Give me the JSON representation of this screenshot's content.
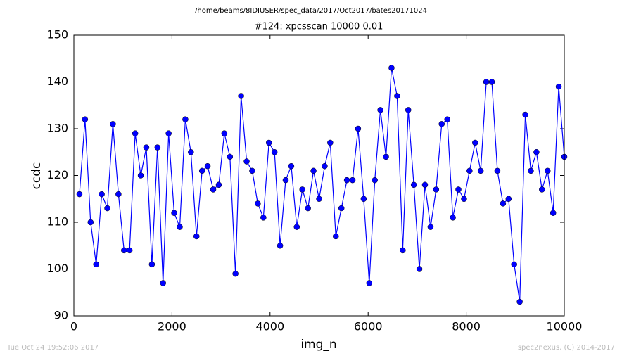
{
  "chart_data": {
    "type": "line",
    "suptitle": "/home/beams/8IDIUSER/spec_data/2017/Oct2017/bates20171024",
    "title": "#124: xpcsscan 10000 0.01",
    "xlabel": "img_n",
    "ylabel": "ccdc",
    "footer_left": "Tue Oct 24 19:52:06 2017",
    "footer_right": "spec2nexus, (C) 2014-2017",
    "x": [
      114,
      227,
      341,
      455,
      568,
      682,
      795,
      909,
      1023,
      1136,
      1250,
      1364,
      1477,
      1591,
      1705,
      1818,
      1932,
      2045,
      2159,
      2273,
      2386,
      2500,
      2614,
      2727,
      2841,
      2955,
      3068,
      3182,
      3295,
      3409,
      3523,
      3636,
      3750,
      3864,
      3977,
      4091,
      4205,
      4318,
      4432,
      4545,
      4659,
      4773,
      4886,
      5000,
      5114,
      5227,
      5341,
      5455,
      5568,
      5682,
      5795,
      5909,
      6023,
      6136,
      6250,
      6364,
      6477,
      6591,
      6705,
      6818,
      6932,
      7045,
      7159,
      7273,
      7386,
      7500,
      7614,
      7727,
      7841,
      7955,
      8068,
      8182,
      8295,
      8409,
      8523,
      8636,
      8750,
      8864,
      8977,
      9091,
      9205,
      9318,
      9432,
      9545,
      9659,
      9773,
      9886,
      10000
    ],
    "values": [
      116,
      132,
      110,
      101,
      116,
      113,
      131,
      116,
      104,
      104,
      129,
      120,
      126,
      101,
      126,
      97,
      129,
      112,
      109,
      132,
      125,
      107,
      121,
      122,
      117,
      118,
      129,
      124,
      99,
      137,
      123,
      121,
      114,
      111,
      127,
      125,
      105,
      119,
      122,
      109,
      117,
      113,
      121,
      115,
      122,
      127,
      107,
      113,
      119,
      119,
      130,
      115,
      97,
      119,
      134,
      124,
      143,
      137,
      104,
      134,
      118,
      100,
      118,
      109,
      117,
      131,
      132,
      111,
      117,
      115,
      121,
      127,
      121,
      140,
      140,
      121,
      114,
      115,
      101,
      93,
      133,
      121,
      125,
      117,
      121,
      112,
      139,
      124
    ],
    "color": "#0000ff",
    "xlim": [
      0,
      10000
    ],
    "xticks": [
      0,
      2000,
      4000,
      6000,
      8000,
      10000
    ],
    "ylim": [
      90,
      150
    ],
    "yticks": [
      90,
      100,
      110,
      120,
      130,
      140,
      150
    ]
  }
}
